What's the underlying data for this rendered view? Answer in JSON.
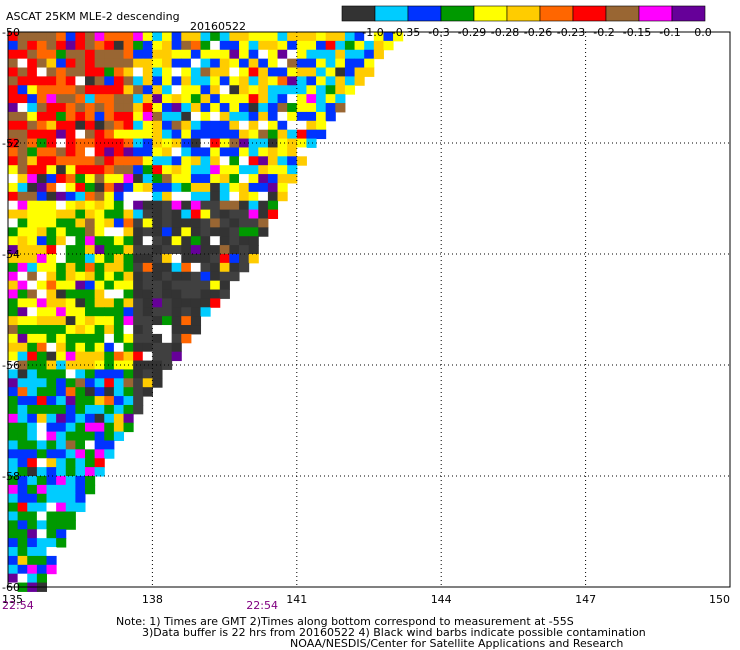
{
  "chart_data": {
    "type": "heatmap",
    "title": "ASCAT 25KM MLE-2 descending",
    "date": "20160522",
    "x_ticks": [
      "135",
      "138",
      "141",
      "144",
      "147",
      "150"
    ],
    "x_tick_values": [
      135,
      138,
      141,
      144,
      147,
      150
    ],
    "y_ticks": [
      "-50",
      "-52",
      "-54",
      "-56",
      "-58",
      "-60"
    ],
    "y_tick_values": [
      -50,
      -52,
      -54,
      -56,
      -58,
      -60
    ],
    "xlim": [
      135,
      150
    ],
    "ylim": [
      -60,
      -50
    ],
    "grid": true,
    "time_labels": [
      {
        "text": "22:54",
        "lon": 135
      },
      {
        "text": "22:54",
        "lon": 140.2
      }
    ],
    "colorbar": {
      "ticks": [
        "-1.0",
        "-0.35",
        "-0.3",
        "-0.29",
        "-0.28",
        "-0.26",
        "-0.23",
        "-0.2",
        "-0.15",
        "-0.1",
        "0.0"
      ],
      "colors": [
        "#333333",
        "#00ccff",
        "#0033ff",
        "#009900",
        "#ffff00",
        "#ffcc00",
        "#ff6600",
        "#ff0000",
        "#996633",
        "#ff00ff",
        "#660099"
      ]
    },
    "swath_edge": [
      {
        "lat": -50.0,
        "lon": 143.0
      },
      {
        "lat": -52.0,
        "lon": 141.2
      },
      {
        "lat": -54.0,
        "lon": 140.0
      },
      {
        "lat": -56.0,
        "lon": 138.2
      },
      {
        "lat": -58.0,
        "lon": 136.7
      },
      {
        "lat": -60.0,
        "lon": 135.6
      }
    ],
    "value_regions": [
      {
        "name": "north-west",
        "lat": [
          -52.5,
          -50.0
        ],
        "lon": [
          135,
          137.5
        ],
        "dominant": [
          "-0.2",
          "-0.23",
          "-0.15"
        ]
      },
      {
        "name": "north-east",
        "lat": [
          -53.0,
          -50.0
        ],
        "lon": [
          137.5,
          143
        ],
        "dominant": [
          "-0.26",
          "-0.28",
          "-0.3",
          "-0.35"
        ]
      },
      {
        "name": "central",
        "lat": [
          -56.0,
          -53.0
        ],
        "lon": [
          135,
          137.5
        ],
        "dominant": [
          "-0.26",
          "-0.28",
          "-0.29"
        ]
      },
      {
        "name": "central-east",
        "lat": [
          -57.5,
          -53.0
        ],
        "lon": [
          137.5,
          140.2
        ],
        "dominant": [
          "-1.0"
        ]
      },
      {
        "name": "south",
        "lat": [
          -60.0,
          -56.0
        ],
        "lon": [
          135,
          137.5
        ],
        "dominant": [
          "-0.3",
          "-0.35",
          "-0.29"
        ]
      },
      {
        "name": "south-east",
        "lat": [
          -60.0,
          -57.5
        ],
        "lon": [
          136.5,
          137.8
        ],
        "dominant": [
          "-1.0"
        ]
      }
    ]
  },
  "notes": {
    "line1": "Note: 1) Times are GMT 2)Times along bottom correspond to measurement at -55S",
    "line2": "3)Data buffer is 22 hrs from 20160522 4) Black wind barbs indicate possible contamination",
    "line3": "NOAA/NESDIS/Center for Satellite Applications and Research"
  }
}
